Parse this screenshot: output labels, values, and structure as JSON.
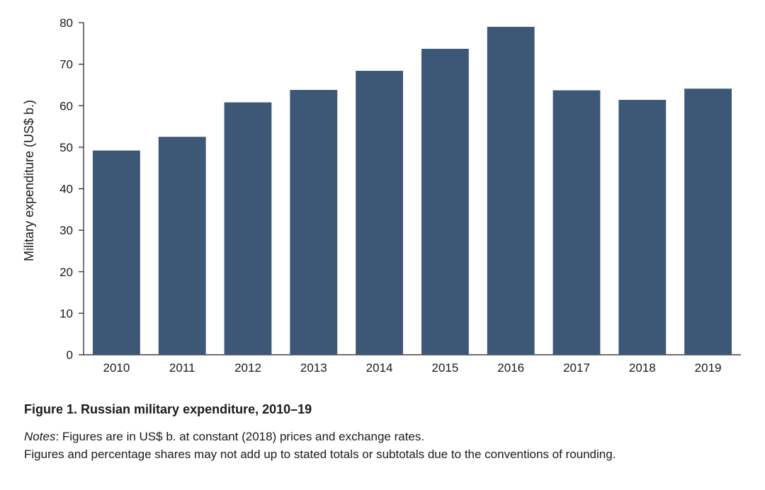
{
  "chart_data": {
    "type": "bar",
    "title": "",
    "xlabel": "",
    "ylabel": "Military expenditure (US$ b.)",
    "categories": [
      "2010",
      "2011",
      "2012",
      "2013",
      "2014",
      "2015",
      "2016",
      "2017",
      "2018",
      "2019"
    ],
    "values": [
      49.2,
      52.5,
      60.8,
      63.8,
      68.4,
      73.7,
      79.0,
      63.7,
      61.4,
      64.1
    ],
    "ylim": [
      0,
      80
    ],
    "yticks": [
      0,
      10,
      20,
      30,
      40,
      50,
      60,
      70,
      80
    ],
    "grid": false,
    "bar_color": "#3d5776"
  },
  "caption": {
    "figure_title": "Figure 1. Russian military expenditure, 2010–19",
    "notes_label": "Notes",
    "notes_text": ": Figures are in US$ b. at constant (2018) prices and exchange rates.",
    "notes_line2": "Figures and percentage shares may not add up to stated totals or subtotals due to the conventions of rounding."
  }
}
